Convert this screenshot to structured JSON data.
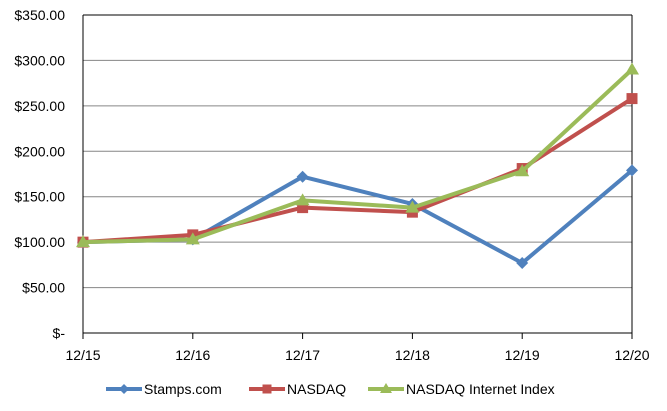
{
  "chart_data": {
    "type": "line",
    "title": "",
    "xlabel": "",
    "ylabel": "",
    "categories": [
      "12/15",
      "12/16",
      "12/17",
      "12/18",
      "12/19",
      "12/20"
    ],
    "ylim": [
      0,
      350
    ],
    "yticks": [
      0,
      50,
      100,
      150,
      200,
      250,
      300,
      350
    ],
    "ytick_labels": [
      "$-",
      "$50.00",
      "$100.00",
      "$150.00",
      "$200.00",
      "$250.00",
      "$300.00",
      "$350.00"
    ],
    "grid": "horizontal",
    "legend_position": "bottom",
    "series": [
      {
        "name": "Stamps.com",
        "color": "#4F81BD",
        "marker": "diamond",
        "values": [
          100,
          103,
          172,
          142,
          77,
          179
        ]
      },
      {
        "name": "NASDAQ",
        "color": "#C0504D",
        "marker": "square",
        "values": [
          100,
          108,
          138,
          133,
          181,
          258
        ]
      },
      {
        "name": "NASDAQ Internet Index",
        "color": "#9BBB59",
        "marker": "triangle",
        "values": [
          100,
          103,
          146,
          138,
          178,
          290
        ]
      }
    ]
  }
}
